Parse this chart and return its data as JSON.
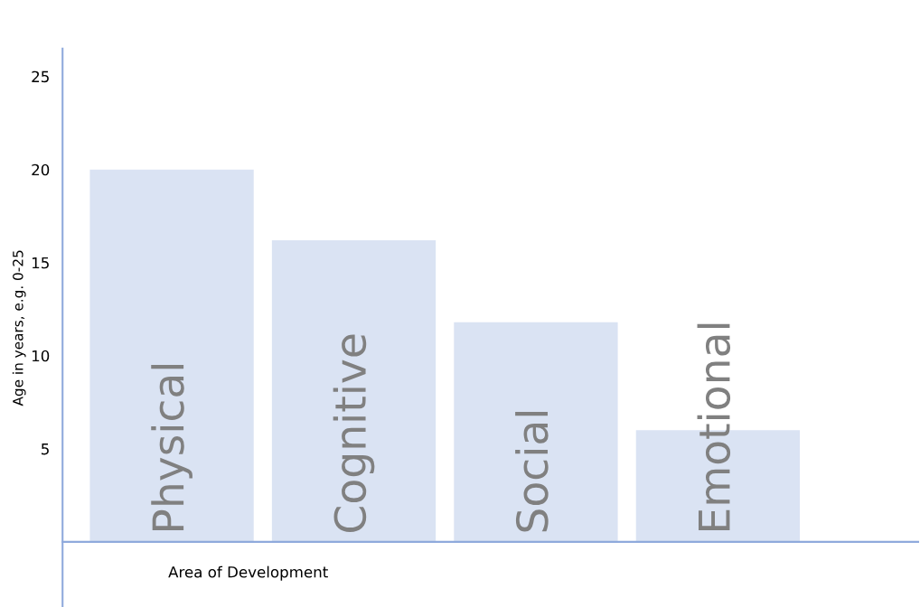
{
  "chart_data": {
    "type": "bar",
    "xlabel": "Area of Development",
    "ylabel": "Age in years, e.g. 0-25",
    "categories": [
      "Physical",
      "Cognitive",
      "Social",
      "Emotional"
    ],
    "values": [
      20,
      16.2,
      11.8,
      6
    ],
    "color": "#dae3f3",
    "ylim": [
      -3.5,
      26.5
    ],
    "yticks": [
      5,
      10,
      15,
      20,
      25
    ],
    "grid": false
  }
}
